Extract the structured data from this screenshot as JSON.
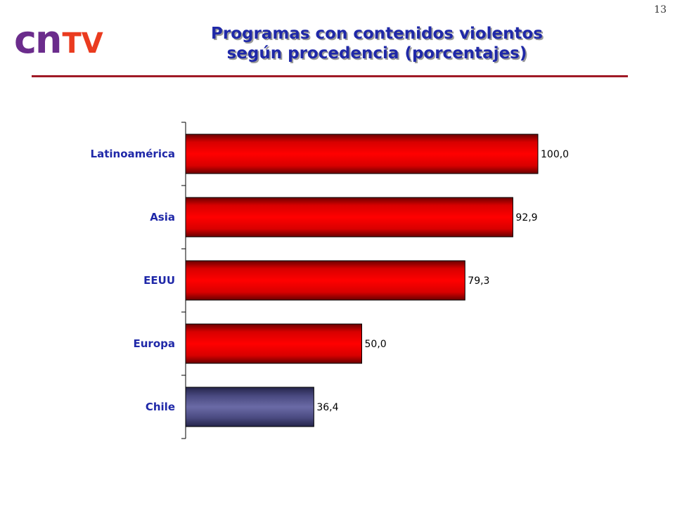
{
  "page_number": "13",
  "logo": {
    "cn": "cn",
    "tv": "TV"
  },
  "title": {
    "line1": "Programas con contenidos violentos",
    "line2": "según procedencia (porcentajes)"
  },
  "colors": {
    "title": "#1f28a8",
    "rule": "#a01a26",
    "bar_red": "#ff0000",
    "bar_highlight": "#5a5a90",
    "logo_cn": "#6b2c8c",
    "logo_tv": "#ea3b1f"
  },
  "chart_data": {
    "type": "bar",
    "orientation": "horizontal",
    "title": "Programas con contenidos violentos según procedencia (porcentajes)",
    "categories": [
      "Latinoamérica",
      "Asia",
      "EEUU",
      "Europa",
      "Chile"
    ],
    "values": [
      100.0,
      92.9,
      79.3,
      50.0,
      36.4
    ],
    "value_labels": [
      "100,0",
      "92,9",
      "79,3",
      "50,0",
      "36,4"
    ],
    "highlight": "Chile",
    "xlim": [
      0,
      100
    ],
    "grid": false,
    "legend": "none"
  }
}
